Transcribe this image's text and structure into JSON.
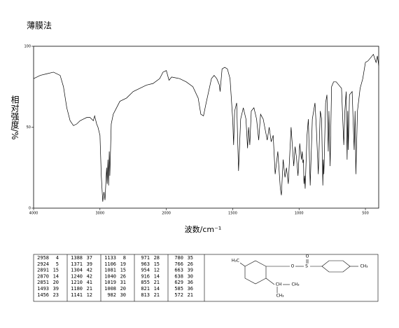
{
  "chart_data": {
    "type": "line",
    "title": "薄膜法",
    "x_label": "波数/cm⁻¹",
    "y_label": "相对强度/%",
    "xlim": [
      4000,
      400
    ],
    "xticks": [
      4000,
      3000,
      2000,
      1500,
      1000,
      500
    ],
    "ylim": [
      0,
      100
    ],
    "yticks": [
      0,
      50,
      100
    ],
    "x": [
      4000,
      3900,
      3800,
      3700,
      3600,
      3550,
      3500,
      3450,
      3400,
      3350,
      3300,
      3250,
      3200,
      3150,
      3100,
      3080,
      3050,
      3030,
      3000,
      2980,
      2958,
      2940,
      2924,
      2900,
      2891,
      2880,
      2870,
      2860,
      2851,
      2830,
      2800,
      2750,
      2700,
      2600,
      2500,
      2400,
      2300,
      2200,
      2100,
      2050,
      2000,
      1980,
      1960,
      1900,
      1850,
      1800,
      1760,
      1740,
      1720,
      1700,
      1660,
      1640,
      1620,
      1600,
      1595,
      1580,
      1560,
      1540,
      1520,
      1500,
      1493,
      1485,
      1470,
      1456,
      1440,
      1420,
      1400,
      1388,
      1380,
      1371,
      1360,
      1340,
      1320,
      1304,
      1290,
      1270,
      1240,
      1225,
      1210,
      1195,
      1180,
      1160,
      1141,
      1133,
      1120,
      1106,
      1095,
      1081,
      1060,
      1040,
      1030,
      1019,
      1008,
      995,
      982,
      976,
      971,
      967,
      963,
      958,
      954,
      940,
      930,
      916,
      900,
      880,
      870,
      855,
      840,
      830,
      821,
      817,
      813,
      800,
      790,
      780,
      775,
      766,
      755,
      740,
      720,
      700,
      680,
      663,
      655,
      645,
      638,
      633,
      629,
      620,
      600,
      585,
      578,
      572,
      560,
      540,
      520,
      500,
      480,
      460,
      440,
      420,
      410,
      400
    ],
    "series": [
      {
        "color": "#000000",
        "values": [
          80,
          82,
          83,
          84,
          82,
          75,
          62,
          54,
          51,
          52,
          54,
          55,
          56,
          56,
          54,
          57,
          52,
          50,
          45,
          20,
          4,
          10,
          5,
          25,
          15,
          30,
          14,
          35,
          20,
          52,
          58,
          62,
          66,
          68,
          72,
          74,
          76,
          77,
          80,
          84,
          85,
          79,
          81,
          80,
          78,
          75,
          68,
          58,
          57,
          65,
          80,
          82,
          80,
          76,
          72,
          86,
          87,
          86,
          80,
          55,
          39,
          60,
          65,
          23,
          55,
          62,
          55,
          37,
          50,
          39,
          60,
          62,
          55,
          42,
          58,
          55,
          42,
          50,
          41,
          45,
          21,
          35,
          12,
          8,
          30,
          19,
          25,
          15,
          50,
          26,
          38,
          31,
          20,
          40,
          30,
          35,
          28,
          30,
          15,
          20,
          12,
          45,
          55,
          14,
          55,
          65,
          50,
          21,
          60,
          55,
          14,
          30,
          21,
          65,
          70,
          35,
          60,
          26,
          75,
          78,
          78,
          76,
          74,
          39,
          60,
          72,
          30,
          60,
          36,
          70,
          72,
          36,
          60,
          21,
          60,
          74,
          80,
          90,
          91,
          93,
          95,
          90,
          94,
          88
        ]
      }
    ]
  },
  "peak_table": [
    [
      2958,
      4
    ],
    [
      2924,
      5
    ],
    [
      2891,
      15
    ],
    [
      2870,
      14
    ],
    [
      2851,
      20
    ],
    [
      1493,
      39
    ],
    [
      1456,
      23
    ],
    [
      1388,
      37
    ],
    [
      1371,
      39
    ],
    [
      1304,
      42
    ],
    [
      1240,
      42
    ],
    [
      1210,
      41
    ],
    [
      1180,
      21
    ],
    [
      1141,
      12
    ],
    [
      1133,
      8
    ],
    [
      1106,
      19
    ],
    [
      1081,
      15
    ],
    [
      1040,
      26
    ],
    [
      1019,
      31
    ],
    [
      1008,
      20
    ],
    [
      982,
      30
    ],
    [
      971,
      28
    ],
    [
      963,
      15
    ],
    [
      954,
      12
    ],
    [
      916,
      14
    ],
    [
      855,
      21
    ],
    [
      821,
      14
    ],
    [
      813,
      21
    ],
    [
      780,
      35
    ],
    [
      766,
      26
    ],
    [
      663,
      39
    ],
    [
      638,
      30
    ],
    [
      629,
      36
    ],
    [
      585,
      36
    ],
    [
      572,
      21
    ]
  ],
  "structure_labels": [
    "H₃C",
    "O",
    "S",
    "O",
    "CH₃",
    "CH",
    "CH₃",
    "CH₃"
  ]
}
